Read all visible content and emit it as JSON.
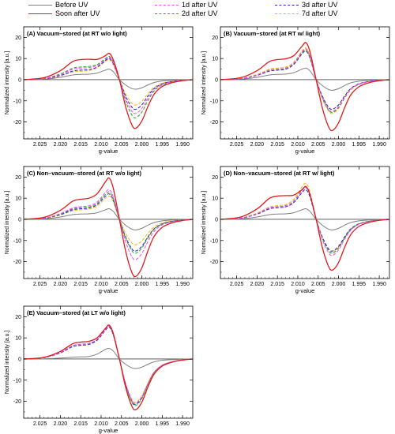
{
  "figure": {
    "legend": [
      {
        "label": "Before UV",
        "color": "#808080",
        "dash": "solid"
      },
      {
        "label": "Soon after UV",
        "color": "#e31a1c",
        "dash": "solid"
      },
      {
        "label": "1d after UV",
        "color": "#ff44ff",
        "dash": "dashed"
      },
      {
        "label": "2d after UV",
        "color": "#22aa22",
        "dash": "dashed"
      },
      {
        "label": "3d after UV",
        "color": "#2222cc",
        "dash": "dashed"
      },
      {
        "label": "7d after UV",
        "color": "#ffb300",
        "dash": "dashed"
      }
    ]
  },
  "chart_data": [
    {
      "type": "line",
      "panel_title": "(A) Vacuum–stored (at RT w/o light)",
      "xlabel": "g-value",
      "ylabel": "Normalized intensity [a.u.]",
      "xlim": [
        2.029,
        1.9875
      ],
      "ylim": [
        -28,
        25
      ],
      "x_inverted": true,
      "xticks": [
        "2.025",
        "2.020",
        "2.015",
        "2.010",
        "2.005",
        "2.000",
        "1.995",
        "1.990"
      ],
      "yticks": [
        "-20",
        "-10",
        "0",
        "10",
        "20"
      ],
      "legend": "top",
      "grid": false,
      "series": [
        {
          "name": "Before UV",
          "key_points": {
            "g": [
              2.029,
              2.02,
              2.012,
              2.0082,
              2.0055,
              2.0015,
              1.998,
              1.994,
              1.9875
            ],
            "y": [
              0,
              0.8,
              2.5,
              5,
              0,
              -4.5,
              -2.5,
              -0.8,
              0
            ]
          },
          "features": {
            "pos_peak": 5,
            "neg_peak": -4.5,
            "shoulder": 2.5
          }
        },
        {
          "name": "Soon after UV",
          "features": {
            "pos_peak": 12.5,
            "neg_peak": -23,
            "shoulder": 9.5
          }
        },
        {
          "name": "1d after UV",
          "features": {
            "pos_peak": 10.5,
            "neg_peak": -16,
            "shoulder": 5.5
          }
        },
        {
          "name": "2d after UV",
          "features": {
            "pos_peak": 11,
            "neg_peak": -18,
            "shoulder": 6
          }
        },
        {
          "name": "3d after UV",
          "features": {
            "pos_peak": 10,
            "neg_peak": -14,
            "shoulder": 4.5
          }
        },
        {
          "name": "7d after UV",
          "features": {
            "pos_peak": 9.5,
            "neg_peak": -12,
            "shoulder": 4
          }
        }
      ]
    },
    {
      "type": "line",
      "panel_title": "(B) Vacuum–stored (at RT w/ light)",
      "xlabel": "g-value",
      "ylabel": "Normalized intensity [a.u.]",
      "xlim": [
        2.029,
        1.9875
      ],
      "ylim": [
        -28,
        25
      ],
      "x_inverted": true,
      "xticks": [
        "2.025",
        "2.020",
        "2.015",
        "2.010",
        "2.005",
        "2.000",
        "1.995",
        "1.990"
      ],
      "yticks": [
        "-20",
        "-10",
        "0",
        "10",
        "20"
      ],
      "legend": "top",
      "grid": false,
      "series": [
        {
          "name": "Before UV",
          "features": {
            "pos_peak": 5.5,
            "neg_peak": -5,
            "shoulder": 2.5
          }
        },
        {
          "name": "Soon after UV",
          "features": {
            "pos_peak": 17.5,
            "neg_peak": -24,
            "shoulder": 9.5
          }
        },
        {
          "name": "1d after UV",
          "features": {
            "pos_peak": 14.5,
            "neg_peak": -15,
            "shoulder": 5
          }
        },
        {
          "name": "2d after UV",
          "features": {
            "pos_peak": 14,
            "neg_peak": -15.5,
            "shoulder": 5
          }
        },
        {
          "name": "3d after UV",
          "features": {
            "pos_peak": 13.5,
            "neg_peak": -14,
            "shoulder": 4.5
          }
        },
        {
          "name": "7d after UV",
          "features": {
            "pos_peak": 15,
            "neg_peak": -16,
            "shoulder": 5.5
          }
        }
      ]
    },
    {
      "type": "line",
      "panel_title": "(C) Non–vacuum–stored (at RT w/o light)",
      "xlabel": "g-value",
      "ylabel": "Normalized intensity [a.u.]",
      "xlim": [
        2.029,
        1.9875
      ],
      "ylim": [
        -28,
        25
      ],
      "x_inverted": true,
      "xticks": [
        "2.025",
        "2.020",
        "2.015",
        "2.010",
        "2.005",
        "2.000",
        "1.995",
        "1.990"
      ],
      "yticks": [
        "-20",
        "-10",
        "0",
        "10",
        "20"
      ],
      "legend": "top",
      "grid": false,
      "series": [
        {
          "name": "Before UV",
          "features": {
            "pos_peak": 5,
            "neg_peak": -5,
            "shoulder": 2.5
          }
        },
        {
          "name": "Soon after UV",
          "features": {
            "pos_peak": 19.5,
            "neg_peak": -27,
            "shoulder": 9.5
          }
        },
        {
          "name": "1d after UV",
          "features": {
            "pos_peak": 14,
            "neg_peak": -19,
            "shoulder": 6
          }
        },
        {
          "name": "2d after UV",
          "features": {
            "pos_peak": 13,
            "neg_peak": -16,
            "shoulder": 5.5
          }
        },
        {
          "name": "3d after UV",
          "features": {
            "pos_peak": 12,
            "neg_peak": -15,
            "shoulder": 5
          }
        },
        {
          "name": "7d after UV",
          "features": {
            "pos_peak": 11,
            "neg_peak": -12,
            "shoulder": 4.5
          }
        }
      ]
    },
    {
      "type": "line",
      "panel_title": "(D) Non–vacuum–stored (at RT w/ light)",
      "xlabel": "g-value",
      "ylabel": "Normalized intensity [a.u.]",
      "xlim": [
        2.029,
        1.9875
      ],
      "ylim": [
        -28,
        25
      ],
      "x_inverted": true,
      "xticks": [
        "2.025",
        "2.020",
        "2.015",
        "2.010",
        "2.005",
        "2.000",
        "1.995",
        "1.990"
      ],
      "yticks": [
        "-20",
        "-10",
        "0",
        "10",
        "20"
      ],
      "legend": "top",
      "grid": false,
      "series": [
        {
          "name": "Before UV",
          "features": {
            "pos_peak": 5,
            "neg_peak": -5,
            "shoulder": 2.5
          }
        },
        {
          "name": "Soon after UV",
          "features": {
            "pos_peak": 15.5,
            "neg_peak": -24,
            "shoulder": 11
          }
        },
        {
          "name": "1d after UV",
          "features": {
            "pos_peak": 15,
            "neg_peak": -17,
            "shoulder": 6
          }
        },
        {
          "name": "2d after UV",
          "features": {
            "pos_peak": 15.5,
            "neg_peak": -16,
            "shoulder": 6
          }
        },
        {
          "name": "3d after UV",
          "features": {
            "pos_peak": 14,
            "neg_peak": -15,
            "shoulder": 5.5
          }
        },
        {
          "name": "7d after UV",
          "features": {
            "pos_peak": 17,
            "neg_peak": -15.5,
            "shoulder": 6.5
          }
        }
      ]
    },
    {
      "type": "line",
      "panel_title": "(E) Vacuum–stored (at LT w/o light)",
      "xlabel": "g-value",
      "ylabel": "Normalized intensity [a.u.]",
      "xlim": [
        2.029,
        1.9875
      ],
      "ylim": [
        -28,
        25
      ],
      "x_inverted": true,
      "xticks": [
        "2.025",
        "2.020",
        "2.015",
        "2.010",
        "2.005",
        "2.000",
        "1.995",
        "1.990"
      ],
      "yticks": [
        "-20",
        "-10",
        "0",
        "10",
        "20"
      ],
      "legend": "top",
      "grid": false,
      "series": [
        {
          "name": "Before UV",
          "features": {
            "pos_peak": 5,
            "neg_peak": -4.5,
            "shoulder": 1
          }
        },
        {
          "name": "Soon after UV",
          "features": {
            "pos_peak": 16,
            "neg_peak": -24,
            "shoulder": 8
          }
        },
        {
          "name": "1d after UV",
          "features": {
            "pos_peak": 15.5,
            "neg_peak": -21,
            "shoulder": 7
          }
        },
        {
          "name": "2d after UV",
          "features": {
            "pos_peak": 15.5,
            "neg_peak": -22,
            "shoulder": 7
          }
        },
        {
          "name": "3d after UV",
          "features": {
            "pos_peak": 15,
            "neg_peak": -21.5,
            "shoulder": 6.5
          }
        },
        {
          "name": "7d after UV",
          "features": {
            "pos_peak": 15.5,
            "neg_peak": -20.5,
            "shoulder": 6.5
          }
        }
      ]
    }
  ]
}
